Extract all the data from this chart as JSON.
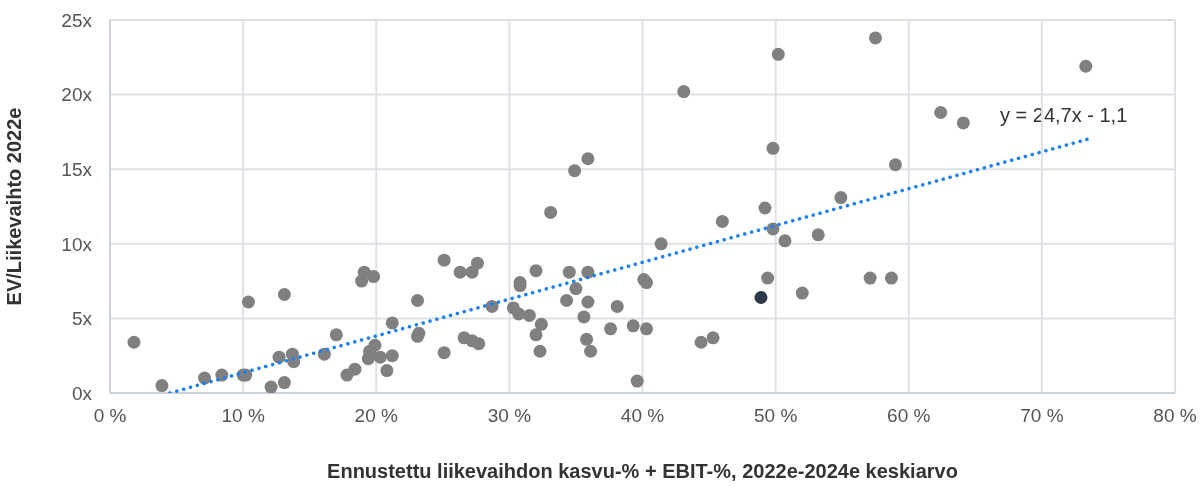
{
  "chart_data": {
    "type": "scatter",
    "xlabel": "Ennustettu liikevaihdon kasvu-% + EBIT-%, 2022e-2024e keskiarvo",
    "ylabel": "EV/Liikevaihto 2022e",
    "xlim": [
      0,
      80
    ],
    "xticks": [
      {
        "value": 0,
        "label": "0 %"
      },
      {
        "value": 10,
        "label": "10 %"
      },
      {
        "value": 20,
        "label": "20 %"
      },
      {
        "value": 30,
        "label": "30 %"
      },
      {
        "value": 40,
        "label": "40 %"
      },
      {
        "value": 50,
        "label": "50 %"
      },
      {
        "value": 60,
        "label": "60 %"
      },
      {
        "value": 70,
        "label": "70 %"
      },
      {
        "value": 80,
        "label": "80 %"
      }
    ],
    "ylim": [
      0,
      25
    ],
    "yticks": [
      {
        "value": 0,
        "label": "0x"
      },
      {
        "value": 5,
        "label": "5x"
      },
      {
        "value": 10,
        "label": "10x"
      },
      {
        "value": 15,
        "label": "15x"
      },
      {
        "value": 20,
        "label": "20x"
      },
      {
        "value": 25,
        "label": "25x"
      }
    ],
    "grid": true,
    "marker": "circle",
    "annotations": [
      "y = 24,7x - 1,1"
    ],
    "series": [
      {
        "color": "#808080",
        "x": [
          1.8,
          3.9,
          7.1,
          8.4,
          10.0,
          10.2,
          10.4,
          12.1,
          13.1,
          13.1,
          12.7,
          13.7,
          13.8,
          16.1,
          17.0,
          17.8,
          18.4,
          18.9,
          19.1,
          19.8,
          19.4,
          19.5,
          19.9,
          20.3,
          20.8,
          21.2,
          21.2,
          23.1,
          23.2,
          23.1,
          25.1,
          25.1,
          26.3,
          27.2,
          27.6,
          26.6,
          27.2,
          27.7,
          28.7,
          30.3,
          30.7,
          31.5,
          30.8,
          30.8,
          32.0,
          32.4,
          32.0,
          32.3,
          33.1,
          34.5,
          34.3,
          35.0,
          34.9,
          35.9,
          35.9,
          35.9,
          35.6,
          35.8,
          36.1,
          37.6,
          38.1,
          39.3,
          40.3,
          39.6,
          40.1,
          40.3,
          41.4,
          43.1,
          44.4,
          45.3,
          46.0,
          49.2,
          49.4,
          49.8,
          49.8,
          50.2,
          50.7,
          52.0,
          53.2,
          54.9,
          57.1,
          57.5,
          58.7,
          59.0,
          62.4,
          64.1,
          73.3
        ],
        "values": [
          3.4,
          0.5,
          1.0,
          1.2,
          1.2,
          1.2,
          6.1,
          0.4,
          0.7,
          6.6,
          2.4,
          2.6,
          2.1,
          2.6,
          3.9,
          1.2,
          1.6,
          7.5,
          8.1,
          7.8,
          2.3,
          2.8,
          3.2,
          2.4,
          1.5,
          2.5,
          4.7,
          6.2,
          4.0,
          3.8,
          8.9,
          2.7,
          8.1,
          8.1,
          8.7,
          3.7,
          3.5,
          3.3,
          5.8,
          5.7,
          5.3,
          5.2,
          7.4,
          7.2,
          8.2,
          4.6,
          3.9,
          2.8,
          12.1,
          8.1,
          6.2,
          7.0,
          14.9,
          15.7,
          8.1,
          6.1,
          5.1,
          3.6,
          2.8,
          4.3,
          5.8,
          4.5,
          4.3,
          0.8,
          7.6,
          7.4,
          10.0,
          20.2,
          3.4,
          3.7,
          11.5,
          12.4,
          7.7,
          11.0,
          16.4,
          22.7,
          10.2,
          6.7,
          10.6,
          13.1,
          7.7,
          23.8,
          7.7,
          15.3,
          18.8,
          18.1,
          21.9
        ]
      },
      {
        "color": "#2d3a4a",
        "x": [
          48.9
        ],
        "values": [
          6.4
        ]
      },
      {
        "type": "line",
        "color": "#1a7ff0",
        "x": [
          4.5,
          73.4
        ],
        "values": [
          0.0,
          17.0
        ],
        "line_style": "dotted",
        "marker": "none"
      }
    ]
  }
}
